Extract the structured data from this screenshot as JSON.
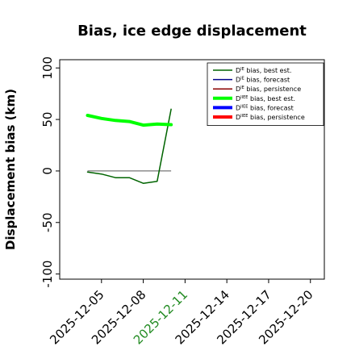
{
  "chart_data": {
    "type": "line",
    "title": "Bias, ice edge displacement",
    "ylabel": "Displacement bias (km)",
    "xlabel": "",
    "ylim": [
      -105,
      108
    ],
    "xlim": [
      "2025-12-02",
      "2025-12-21"
    ],
    "y_ticks": [
      -100,
      -50,
      0,
      50,
      100
    ],
    "x_ticks": [
      "2025-12-05",
      "2025-12-08",
      "2025-12-11",
      "2025-12-14",
      "2025-12-17",
      "2025-12-20"
    ],
    "highlight_tick": "2025-12-11",
    "highlight_color": "#228b22",
    "grid": false,
    "legend_position": "top-right",
    "legend": [
      {
        "sup": "IE",
        "label": "bias, best est.",
        "color": "#006400",
        "width": 1.5
      },
      {
        "sup": "IE",
        "label": "bias, forecast",
        "color": "#00008b",
        "width": 1.5
      },
      {
        "sup": "IE",
        "label": "bias, persistence",
        "color": "#8b0000",
        "width": 1.5
      },
      {
        "sup": "IIEE",
        "label": "bias, best est.",
        "color": "#00ff00",
        "width": 4
      },
      {
        "sup": "IIEE",
        "label": "bias, forecast",
        "color": "#0000ff",
        "width": 4
      },
      {
        "sup": "IIEE",
        "label": "bias, persistence",
        "color": "#ff0000",
        "width": 4
      }
    ],
    "series": [
      {
        "name": "D IE bias, best est.",
        "color": "#006400",
        "width": 1.5,
        "x": [
          "2025-12-04",
          "2025-12-05",
          "2025-12-06",
          "2025-12-07",
          "2025-12-08",
          "2025-12-09",
          "2025-12-10"
        ],
        "values": [
          -1,
          -3,
          -6.5,
          -6.5,
          -12,
          -10,
          60
        ]
      },
      {
        "name": "D IIEE bias, best est.",
        "color": "#00ff00",
        "width": 4,
        "x": [
          "2025-12-04",
          "2025-12-05",
          "2025-12-06",
          "2025-12-07",
          "2025-12-08",
          "2025-12-09",
          "2025-12-10"
        ],
        "values": [
          54,
          51,
          49,
          48,
          44.5,
          45.5,
          45
        ]
      }
    ],
    "reference_line": {
      "y": 0,
      "x": [
        "2025-12-04",
        "2025-12-10"
      ],
      "color": "#555555"
    }
  }
}
